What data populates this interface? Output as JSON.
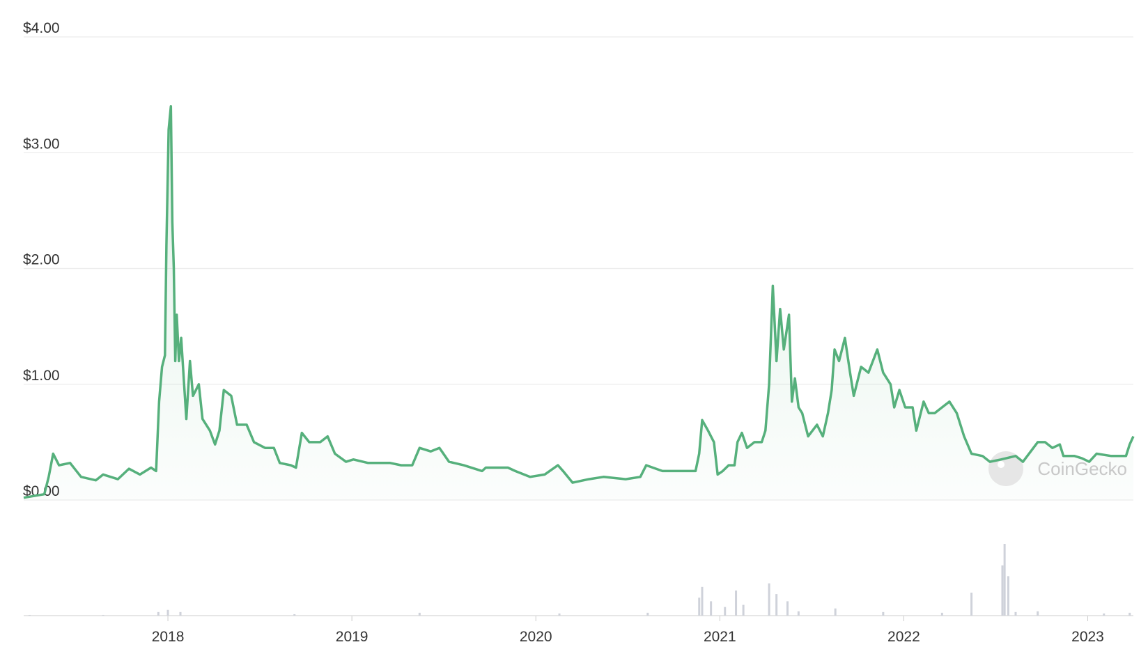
{
  "chart_data": [
    {
      "type": "line",
      "watermark": "CoinGecko",
      "x": [
        2017.216,
        2017.328,
        2017.352,
        2017.376,
        2017.408,
        2017.468,
        2017.528,
        2017.608,
        2017.648,
        2017.728,
        2017.788,
        2017.848,
        2017.908,
        2017.936,
        2017.952,
        2017.968,
        2017.984,
        2017.992,
        2018.004,
        2018.016,
        2018.024,
        2018.032,
        2018.04,
        2018.048,
        2018.06,
        2018.072,
        2018.088,
        2018.1,
        2018.12,
        2018.136,
        2018.168,
        2018.188,
        2018.228,
        2018.256,
        2018.28,
        2018.304,
        2018.344,
        2018.376,
        2018.428,
        2018.468,
        2018.528,
        2018.576,
        2018.608,
        2018.668,
        2018.696,
        2018.728,
        2018.768,
        2018.828,
        2018.868,
        2018.908,
        2018.968,
        2019.008,
        2019.088,
        2019.208,
        2019.268,
        2019.328,
        2019.368,
        2019.428,
        2019.476,
        2019.528,
        2019.608,
        2019.708,
        2019.728,
        2019.848,
        2019.888,
        2019.968,
        2020.048,
        2020.12,
        2020.148,
        2020.2,
        2020.288,
        2020.368,
        2020.488,
        2020.568,
        2020.6,
        2020.688,
        2020.768,
        2020.868,
        2020.888,
        2020.904,
        2020.936,
        2020.968,
        2020.988,
        2021.016,
        2021.048,
        2021.08,
        2021.096,
        2021.12,
        2021.148,
        2021.188,
        2021.228,
        2021.248,
        2021.268,
        2021.288,
        2021.308,
        2021.328,
        2021.348,
        2021.376,
        2021.392,
        2021.408,
        2021.428,
        2021.448,
        2021.48,
        2021.528,
        2021.56,
        2021.588,
        2021.608,
        2021.624,
        2021.648,
        2021.68,
        2021.708,
        2021.728,
        2021.768,
        2021.808,
        2021.856,
        2021.888,
        2021.928,
        2021.948,
        2021.976,
        2022.008,
        2022.048,
        2022.068,
        2022.108,
        2022.136,
        2022.168,
        2022.208,
        2022.248,
        2022.288,
        2022.328,
        2022.368,
        2022.428,
        2022.468,
        2022.528,
        2022.608,
        2022.648,
        2022.728,
        2022.768,
        2022.808,
        2022.848,
        2022.868,
        2022.928,
        2022.968,
        2023.008,
        2023.048,
        2023.128,
        2023.208,
        2023.228,
        2023.248
      ],
      "series": [
        {
          "color": "#56b07c",
          "values": [
            0.02,
            0.05,
            0.2,
            0.4,
            0.3,
            0.32,
            0.2,
            0.17,
            0.22,
            0.18,
            0.27,
            0.22,
            0.28,
            0.25,
            0.85,
            1.15,
            1.25,
            2.2,
            3.2,
            3.4,
            2.4,
            2.0,
            1.2,
            1.6,
            1.2,
            1.4,
            1.0,
            0.7,
            1.2,
            0.9,
            1.0,
            0.7,
            0.6,
            0.48,
            0.6,
            0.95,
            0.9,
            0.65,
            0.65,
            0.5,
            0.45,
            0.45,
            0.32,
            0.3,
            0.28,
            0.58,
            0.5,
            0.5,
            0.55,
            0.4,
            0.33,
            0.35,
            0.32,
            0.32,
            0.3,
            0.3,
            0.45,
            0.42,
            0.45,
            0.33,
            0.3,
            0.25,
            0.28,
            0.28,
            0.25,
            0.2,
            0.22,
            0.3,
            0.25,
            0.15,
            0.18,
            0.2,
            0.18,
            0.2,
            0.3,
            0.25,
            0.25,
            0.25,
            0.4,
            0.69,
            0.6,
            0.5,
            0.22,
            0.25,
            0.3,
            0.3,
            0.5,
            0.58,
            0.45,
            0.5,
            0.5,
            0.6,
            1.0,
            1.85,
            1.2,
            1.65,
            1.3,
            1.6,
            0.85,
            1.05,
            0.8,
            0.75,
            0.55,
            0.65,
            0.55,
            0.75,
            0.95,
            1.3,
            1.2,
            1.4,
            1.1,
            0.9,
            1.15,
            1.1,
            1.3,
            1.1,
            1.0,
            0.8,
            0.95,
            0.8,
            0.8,
            0.6,
            0.85,
            0.75,
            0.75,
            0.8,
            0.85,
            0.75,
            0.55,
            0.4,
            0.38,
            0.33,
            0.35,
            0.38,
            0.33,
            0.5,
            0.5,
            0.45,
            0.48,
            0.38,
            0.38,
            0.36,
            0.33,
            0.4,
            0.38,
            0.38,
            0.48,
            0.55
          ]
        }
      ],
      "xlim": [
        2017.216,
        2023.248
      ],
      "xticks": [
        2018,
        2019,
        2020,
        2021,
        2022,
        2023
      ],
      "ylim": [
        0,
        4
      ],
      "yticks": [
        {
          "value": 0,
          "label": "$0.00"
        },
        {
          "value": 1,
          "label": "$1.00"
        },
        {
          "value": 2,
          "label": "$2.00"
        },
        {
          "value": 3,
          "label": "$3.00"
        },
        {
          "value": 4,
          "label": "$4.00"
        }
      ],
      "grid": true
    },
    {
      "type": "bar",
      "color": "#cfd2da",
      "x": [
        2017.248,
        2017.648,
        2017.948,
        2018.0,
        2018.068,
        2018.688,
        2019.368,
        2020.128,
        2020.608,
        2020.888,
        2020.904,
        2020.952,
        2021.028,
        2021.088,
        2021.128,
        2021.268,
        2021.308,
        2021.368,
        2021.428,
        2021.628,
        2021.888,
        2022.208,
        2022.368,
        2022.536,
        2022.548,
        2022.568,
        2022.608,
        2022.728,
        2023.088,
        2023.228
      ],
      "values": [
        1,
        1,
        5,
        8,
        5,
        2,
        4,
        3,
        4,
        25,
        40,
        20,
        12,
        35,
        15,
        45,
        30,
        20,
        6,
        10,
        5,
        4,
        32,
        70,
        100,
        55,
        5,
        6,
        3,
        4
      ],
      "ylim": [
        0,
        100
      ]
    }
  ]
}
